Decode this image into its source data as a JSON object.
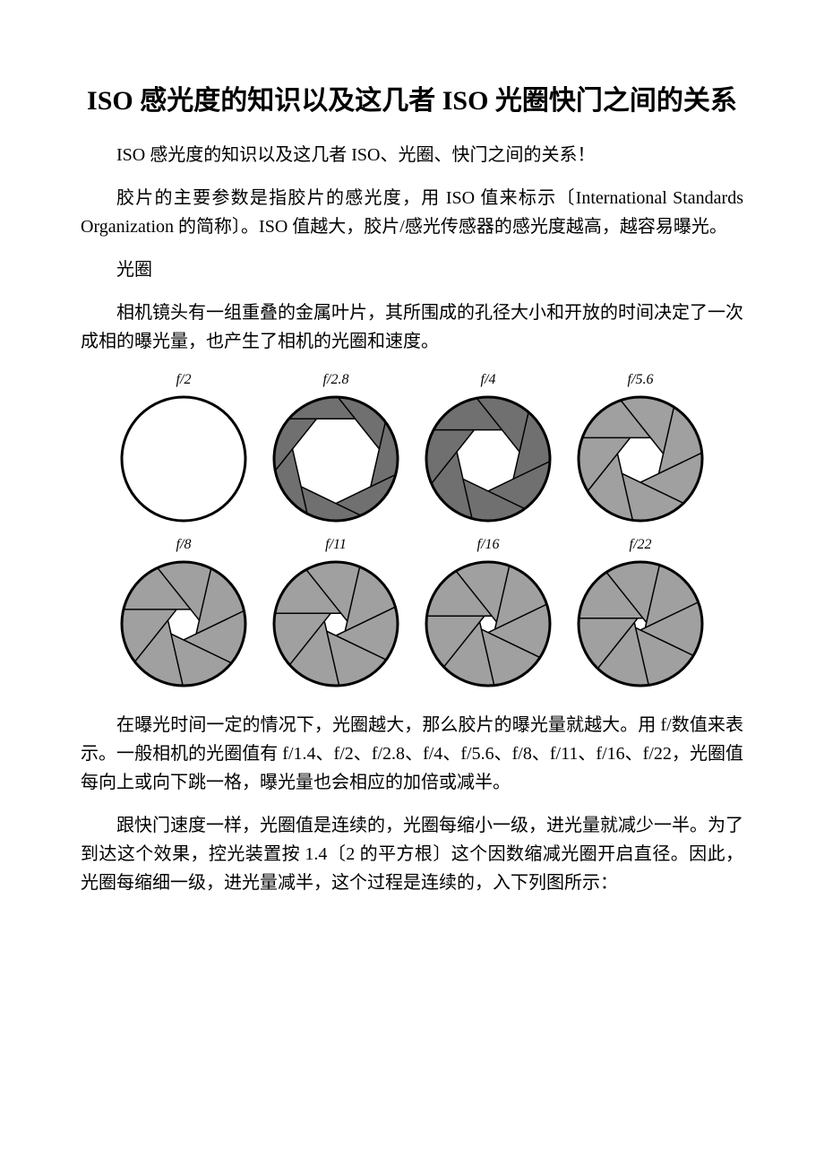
{
  "title": "ISO 感光度的知识以及这几者 ISO 光圈快门之间的关系",
  "para1": "ISO 感光度的知识以及这几者 ISO、光圈、快门之间的关系！",
  "para2": "胶片的主要参数是指胶片的感光度，用 ISO 值来标示〔International Standards Organization 的简称〕。ISO 值越大，胶片/感光传感器的感光度越高，越容易曝光。",
  "para3": "光圈",
  "para4": "相机镜头有一组重叠的金属叶片，其所围成的孔径大小和开放的时间决定了一次成相的曝光量，也产生了相机的光圈和速度。",
  "para5": "在曝光时间一定的情况下，光圈越大，那么胶片的曝光量就越大。用 f/数值来表示。一般相机的光圈值有 f/1.4、f/2、f/2.8、f/4、f/5.6、f/8、f/11、f/16、f/22，光圈值每向上或向下跳一格，曝光量也会相应的加倍或减半。",
  "para6": "跟快门速度一样，光圈值是连续的，光圈每缩小一级，进光量就减少一半。为了到达这个效果，控光装置按 1.4〔2 的平方根〕这个因数缩减光圈开启直径。因此，光圈每缩细一级，进光量减半，这个过程是连续的，入下列图所示：",
  "figure": {
    "circle_color": "#ffffff",
    "blade_color": "#a0a0a0",
    "stroke_color": "#000000",
    "bg_color": "#ffffff",
    "label_font": "italic 16px Times New Roman",
    "blades": 7,
    "row1": [
      {
        "label": "f/2",
        "opening": 1.0,
        "blade_fill": "#ffffff"
      },
      {
        "label": "f/2.8",
        "opening": 0.72,
        "blade_fill": "#707070"
      },
      {
        "label": "f/4",
        "opening": 0.52,
        "blade_fill": "#707070"
      },
      {
        "label": "f/5.6",
        "opening": 0.38,
        "blade_fill": "#a0a0a0"
      }
    ],
    "row2": [
      {
        "label": "f/8",
        "opening": 0.26,
        "blade_fill": "#a0a0a0"
      },
      {
        "label": "f/11",
        "opening": 0.19,
        "blade_fill": "#a0a0a0"
      },
      {
        "label": "f/16",
        "opening": 0.14,
        "blade_fill": "#a0a0a0"
      },
      {
        "label": "f/22",
        "opening": 0.1,
        "blade_fill": "#a0a0a0"
      }
    ]
  }
}
